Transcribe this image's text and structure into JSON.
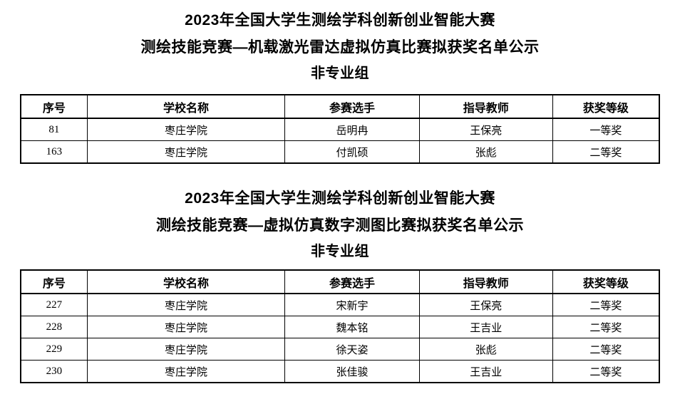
{
  "page": {
    "background_color": "#ffffff",
    "text_color": "#000000",
    "border_color": "#000000"
  },
  "sections": [
    {
      "title_line1": "2023年全国大学生测绘学科创新创业智能大赛",
      "title_line2": "测绘技能竞赛—机载激光雷达虚拟仿真比赛拟获奖名单公示",
      "group_label": "非专业组",
      "table": {
        "headers": [
          "序号",
          "学校名称",
          "参赛选手",
          "指导教师",
          "获奖等级"
        ],
        "rows": [
          [
            "81",
            "枣庄学院",
            "岳明冉",
            "王保亮",
            "一等奖"
          ],
          [
            "163",
            "枣庄学院",
            "付凯硕",
            "张彪",
            "二等奖"
          ]
        ]
      }
    },
    {
      "title_line1": "2023年全国大学生测绘学科创新创业智能大赛",
      "title_line2": "测绘技能竞赛—虚拟仿真数字测图比赛拟获奖名单公示",
      "group_label": "非专业组",
      "table": {
        "headers": [
          "序号",
          "学校名称",
          "参赛选手",
          "指导教师",
          "获奖等级"
        ],
        "rows": [
          [
            "227",
            "枣庄学院",
            "宋新宇",
            "王保亮",
            "二等奖"
          ],
          [
            "228",
            "枣庄学院",
            "魏本铭",
            "王吉业",
            "二等奖"
          ],
          [
            "229",
            "枣庄学院",
            "徐天姿",
            "张彪",
            "二等奖"
          ],
          [
            "230",
            "枣庄学院",
            "张佳骏",
            "王吉业",
            "二等奖"
          ]
        ]
      }
    }
  ]
}
